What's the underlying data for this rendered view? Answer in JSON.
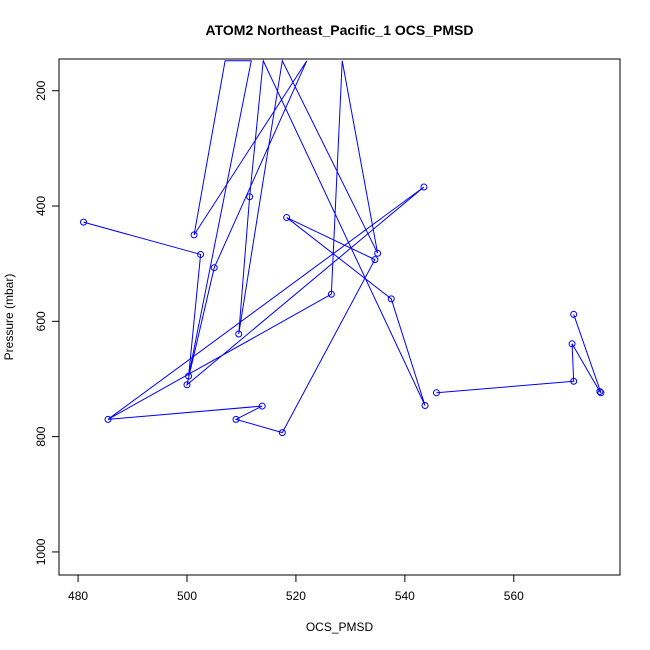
{
  "chart_data": {
    "type": "line",
    "title": "ATOM2 Northeast_Pacific_1 OCS_PMSD",
    "xlabel": "OCS_PMSD",
    "ylabel": "Pressure (mbar)",
    "xlim": [
      476.5,
      579.5
    ],
    "ylim": [
      1040,
      145
    ],
    "y_inverted": true,
    "x_ticks": [
      480,
      500,
      520,
      540,
      560
    ],
    "y_ticks": [
      200,
      400,
      600,
      800,
      1000
    ],
    "series": [
      {
        "color": "#0000ff",
        "marker": "open-circle",
        "points": [
          [
            481.0,
            428
          ],
          [
            502.5,
            484
          ],
          [
            500.3,
            695
          ],
          [
            511.8,
            148
          ],
          [
            507.0,
            148
          ],
          [
            501.3,
            450
          ],
          [
            522.0,
            148
          ],
          [
            505.0,
            507
          ],
          [
            500.0,
            710
          ],
          [
            543.5,
            367
          ],
          [
            485.5,
            770
          ],
          [
            526.5,
            553
          ],
          [
            528.5,
            148
          ],
          [
            535.0,
            482
          ],
          [
            517.5,
            148
          ],
          [
            509.5,
            622
          ],
          [
            511.5,
            384
          ],
          [
            514.0,
            148
          ],
          [
            543.7,
            746
          ],
          [
            537.5,
            561
          ],
          [
            518.3,
            420
          ],
          [
            534.5,
            493
          ],
          [
            517.5,
            793
          ],
          [
            509.0,
            770
          ],
          [
            513.8,
            747
          ],
          [
            485.5,
            770
          ]
        ]
      },
      {
        "color": "#0000ff",
        "marker": "open-circle",
        "points": [
          [
            545.8,
            724
          ],
          [
            571.0,
            704
          ],
          [
            570.7,
            639
          ],
          [
            575.8,
            722
          ],
          [
            576.0,
            724
          ],
          [
            571.0,
            588
          ],
          [
            576.0,
            724
          ]
        ]
      }
    ],
    "visible_markers": [
      [
        481.0,
        428
      ],
      [
        502.5,
        484
      ],
      [
        500.3,
        695
      ],
      [
        501.3,
        450
      ],
      [
        505.0,
        507
      ],
      [
        500.0,
        710
      ],
      [
        543.5,
        367
      ],
      [
        485.5,
        770
      ],
      [
        526.5,
        553
      ],
      [
        535.0,
        482
      ],
      [
        509.5,
        622
      ],
      [
        511.5,
        384
      ],
      [
        543.7,
        746
      ],
      [
        537.5,
        561
      ],
      [
        518.3,
        420
      ],
      [
        534.5,
        493
      ],
      [
        517.5,
        793
      ],
      [
        509.0,
        770
      ],
      [
        513.8,
        747
      ],
      [
        545.8,
        724
      ],
      [
        571.0,
        704
      ],
      [
        570.7,
        639
      ],
      [
        575.8,
        722
      ],
      [
        576.0,
        724
      ],
      [
        571.0,
        588
      ]
    ],
    "grid": false,
    "legend": "none"
  }
}
